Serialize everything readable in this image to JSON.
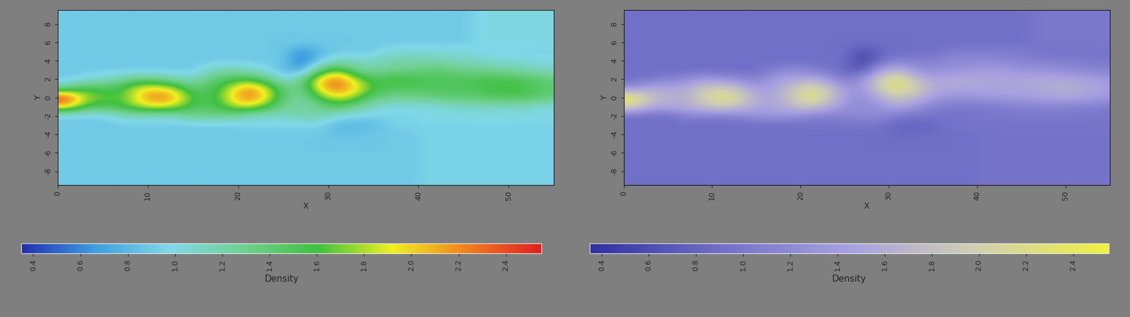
{
  "chart_data": [
    {
      "type": "heatmap",
      "x_label": "X",
      "y_label": "Y",
      "xlim": [
        0,
        55
      ],
      "ylim": [
        -9.5,
        9.5
      ],
      "xticks": [
        0,
        10,
        20,
        30,
        40,
        50
      ],
      "yticks": [
        -8,
        -6,
        -4,
        -2,
        0,
        2,
        4,
        6,
        8
      ],
      "x": [
        1,
        3,
        5,
        7,
        9,
        11,
        13,
        15,
        17,
        19,
        21,
        23,
        25,
        27,
        29,
        31,
        33,
        35,
        37,
        39,
        41,
        43,
        45,
        47,
        49,
        51,
        53,
        55
      ],
      "y": [
        -9,
        -8,
        -7,
        -6,
        -5,
        -4,
        -3,
        -2,
        -1,
        0,
        1,
        2,
        3,
        4,
        5,
        6,
        7,
        8,
        9
      ],
      "cells": [
        [
          0.9,
          0.9,
          0.9,
          0.9,
          0.9,
          0.9,
          0.9,
          0.9,
          0.9,
          0.9,
          0.9,
          0.9,
          0.9,
          0.9,
          0.9,
          0.9,
          0.9,
          0.9,
          0.9,
          0.9,
          0.95,
          0.95,
          0.95,
          0.95,
          0.95,
          0.95,
          0.95,
          0.95
        ],
        [
          0.9,
          0.9,
          0.9,
          0.9,
          0.9,
          0.9,
          0.9,
          0.9,
          0.9,
          0.9,
          0.9,
          0.9,
          0.9,
          0.9,
          0.9,
          0.9,
          0.9,
          0.9,
          0.9,
          0.9,
          0.95,
          0.95,
          0.95,
          0.95,
          0.95,
          0.95,
          0.95,
          0.95
        ],
        [
          0.9,
          0.9,
          0.9,
          0.9,
          0.9,
          0.9,
          0.9,
          0.9,
          0.9,
          0.9,
          0.9,
          0.9,
          0.9,
          0.9,
          0.9,
          0.9,
          0.9,
          0.9,
          0.9,
          0.9,
          0.95,
          0.95,
          0.95,
          0.95,
          0.95,
          0.95,
          0.95,
          0.95
        ],
        [
          0.9,
          0.9,
          0.9,
          0.9,
          0.9,
          0.9,
          0.9,
          0.9,
          0.9,
          0.9,
          0.9,
          0.9,
          0.9,
          0.9,
          0.9,
          0.9,
          0.9,
          0.9,
          0.9,
          0.9,
          0.95,
          0.95,
          0.95,
          0.95,
          0.95,
          0.95,
          0.95,
          0.95
        ],
        [
          0.9,
          0.9,
          0.9,
          0.9,
          0.9,
          0.9,
          0.9,
          0.9,
          0.9,
          0.9,
          0.9,
          0.9,
          0.9,
          0.9,
          0.9,
          0.9,
          0.9,
          0.9,
          0.9,
          0.9,
          0.95,
          0.95,
          0.95,
          0.95,
          0.95,
          0.95,
          0.95,
          0.95
        ],
        [
          0.9,
          0.9,
          0.9,
          0.9,
          0.9,
          0.9,
          0.9,
          0.9,
          0.9,
          0.9,
          0.9,
          0.9,
          0.9,
          0.9,
          0.9,
          0.85,
          0.85,
          0.9,
          0.9,
          0.9,
          0.95,
          0.95,
          0.95,
          0.95,
          0.95,
          0.95,
          0.95,
          0.95
        ],
        [
          0.9,
          0.9,
          0.9,
          0.9,
          0.9,
          0.9,
          0.9,
          0.9,
          0.9,
          0.9,
          0.95,
          0.95,
          0.95,
          0.95,
          0.95,
          0.8,
          0.8,
          0.8,
          0.95,
          0.95,
          0.95,
          0.95,
          0.95,
          0.95,
          0.95,
          0.95,
          0.95,
          0.95
        ],
        [
          0.9,
          0.9,
          0.9,
          1.1,
          1.1,
          1.1,
          1.1,
          1.3,
          1.3,
          1.3,
          1.1,
          1.1,
          1.1,
          1.2,
          1.2,
          1.0,
          0.95,
          0.95,
          0.95,
          0.95,
          1.0,
          1.0,
          1.0,
          1.0,
          1.0,
          1.0,
          1.0,
          1.0
        ],
        [
          2.0,
          1.6,
          1.5,
          1.6,
          1.8,
          1.9,
          1.8,
          1.5,
          1.5,
          1.7,
          1.9,
          1.6,
          1.3,
          1.2,
          1.3,
          1.5,
          1.3,
          1.1,
          1.0,
          1.0,
          1.0,
          1.05,
          1.1,
          1.1,
          1.1,
          1.1,
          1.05,
          1.0
        ],
        [
          2.5,
          1.8,
          1.7,
          1.6,
          2.0,
          2.3,
          2.1,
          1.6,
          1.5,
          1.9,
          2.3,
          2.0,
          1.4,
          1.2,
          1.6,
          1.9,
          1.7,
          1.4,
          1.3,
          1.3,
          1.35,
          1.4,
          1.4,
          1.45,
          1.5,
          1.5,
          1.45,
          1.35
        ],
        [
          1.3,
          1.6,
          1.5,
          1.6,
          1.9,
          2.0,
          1.8,
          1.4,
          1.5,
          1.8,
          2.2,
          1.9,
          1.4,
          1.3,
          2.0,
          2.3,
          2.0,
          1.6,
          1.5,
          1.5,
          1.5,
          1.5,
          1.5,
          1.55,
          1.6,
          1.6,
          1.5,
          1.4
        ],
        [
          0.9,
          1.0,
          1.1,
          1.2,
          1.4,
          1.3,
          1.2,
          1.1,
          1.4,
          1.5,
          1.6,
          1.4,
          1.0,
          1.3,
          2.0,
          2.3,
          1.8,
          1.5,
          1.6,
          1.6,
          1.5,
          1.5,
          1.5,
          1.55,
          1.55,
          1.5,
          1.45,
          1.35
        ],
        [
          0.9,
          0.9,
          0.9,
          0.9,
          0.9,
          0.9,
          0.9,
          0.9,
          1.1,
          1.2,
          1.1,
          1.0,
          0.8,
          0.7,
          1.4,
          1.7,
          1.3,
          1.2,
          1.3,
          1.3,
          1.4,
          1.4,
          1.3,
          1.3,
          1.25,
          1.2,
          1.15,
          1.1
        ],
        [
          0.9,
          0.9,
          0.9,
          0.9,
          0.9,
          0.9,
          0.9,
          0.9,
          0.9,
          0.9,
          0.9,
          0.9,
          0.9,
          0.5,
          0.9,
          1.1,
          1.1,
          1.1,
          1.2,
          1.2,
          1.2,
          1.15,
          1.1,
          1.1,
          1.05,
          1.05,
          1.0,
          1.0
        ],
        [
          0.9,
          0.9,
          0.9,
          0.9,
          0.9,
          0.9,
          0.9,
          0.9,
          0.9,
          0.9,
          0.9,
          0.9,
          0.9,
          0.6,
          0.8,
          0.9,
          0.9,
          0.9,
          1.05,
          1.05,
          1.05,
          1.05,
          1.05,
          0.95,
          0.95,
          0.95,
          0.95,
          0.95
        ],
        [
          0.9,
          0.9,
          0.9,
          0.9,
          0.9,
          0.9,
          0.9,
          0.9,
          0.9,
          0.9,
          0.9,
          0.9,
          0.9,
          0.9,
          0.9,
          0.9,
          0.9,
          0.9,
          0.9,
          0.9,
          0.9,
          0.9,
          0.9,
          1.0,
          1.0,
          1.0,
          1.0,
          1.0
        ],
        [
          0.9,
          0.9,
          0.9,
          0.9,
          0.9,
          0.9,
          0.9,
          0.9,
          0.9,
          0.9,
          0.9,
          0.9,
          0.9,
          0.9,
          0.9,
          0.9,
          0.9,
          0.9,
          0.9,
          0.9,
          0.9,
          0.9,
          0.9,
          1.0,
          1.0,
          1.0,
          1.0,
          1.0
        ],
        [
          0.9,
          0.9,
          0.9,
          0.9,
          0.9,
          0.9,
          0.9,
          0.9,
          0.9,
          0.9,
          0.9,
          0.9,
          0.9,
          0.9,
          0.9,
          0.9,
          0.9,
          0.9,
          0.9,
          0.9,
          0.9,
          0.9,
          0.9,
          1.0,
          1.0,
          1.0,
          1.0,
          1.0
        ],
        [
          0.9,
          0.9,
          0.9,
          0.9,
          0.9,
          0.9,
          0.9,
          0.9,
          0.9,
          0.9,
          0.9,
          0.9,
          0.9,
          0.9,
          0.9,
          0.9,
          0.9,
          0.9,
          0.9,
          0.9,
          0.9,
          0.9,
          0.9,
          1.0,
          1.0,
          1.0,
          1.0,
          1.0
        ]
      ],
      "colorbar_label": "Density",
      "colorbar_range": [
        0.35,
        2.55
      ],
      "colorbar_ticks": [
        0.4,
        0.6,
        0.8,
        1.0,
        1.2,
        1.4,
        1.6,
        1.8,
        2.0,
        2.2,
        2.4
      ],
      "colors": [
        "#2030b0",
        "#40a0e0",
        "#80d8e8",
        "#70d090",
        "#40c040",
        "#f0f020",
        "#f08020",
        "#e02020"
      ]
    },
    {
      "type": "heatmap",
      "x_label": "X",
      "y_label": "Y",
      "xlim": [
        0,
        55
      ],
      "ylim": [
        -9.5,
        9.5
      ],
      "xticks": [
        0,
        10,
        20,
        30,
        40,
        50
      ],
      "yticks": [
        -8,
        -6,
        -4,
        -2,
        0,
        2,
        4,
        6,
        8
      ],
      "x": [
        1,
        3,
        5,
        7,
        9,
        11,
        13,
        15,
        17,
        19,
        21,
        23,
        25,
        27,
        29,
        31,
        33,
        35,
        37,
        39,
        41,
        43,
        45,
        47,
        49,
        51,
        53,
        55
      ],
      "y": [
        -9,
        -8,
        -7,
        -6,
        -5,
        -4,
        -3,
        -2,
        -1,
        0,
        1,
        2,
        3,
        4,
        5,
        6,
        7,
        8,
        9
      ],
      "cells": [
        [
          0.9,
          0.9,
          0.9,
          0.9,
          0.9,
          0.9,
          0.9,
          0.9,
          0.9,
          0.9,
          0.9,
          0.9,
          0.9,
          0.9,
          0.9,
          0.9,
          0.9,
          0.9,
          0.9,
          0.9,
          0.95,
          0.95,
          0.95,
          0.95,
          0.95,
          0.95,
          0.95,
          0.95
        ],
        [
          0.9,
          0.9,
          0.9,
          0.9,
          0.9,
          0.9,
          0.9,
          0.9,
          0.9,
          0.9,
          0.9,
          0.9,
          0.9,
          0.9,
          0.9,
          0.9,
          0.9,
          0.9,
          0.9,
          0.9,
          0.95,
          0.95,
          0.95,
          0.95,
          0.95,
          0.95,
          0.95,
          0.95
        ],
        [
          0.9,
          0.9,
          0.9,
          0.9,
          0.9,
          0.9,
          0.9,
          0.9,
          0.9,
          0.9,
          0.9,
          0.9,
          0.9,
          0.9,
          0.9,
          0.9,
          0.9,
          0.9,
          0.9,
          0.9,
          0.95,
          0.95,
          0.95,
          0.95,
          0.95,
          0.95,
          0.95,
          0.95
        ],
        [
          0.9,
          0.9,
          0.9,
          0.9,
          0.9,
          0.9,
          0.9,
          0.9,
          0.9,
          0.9,
          0.9,
          0.9,
          0.9,
          0.9,
          0.9,
          0.9,
          0.9,
          0.9,
          0.9,
          0.9,
          0.95,
          0.95,
          0.95,
          0.95,
          0.95,
          0.95,
          0.95,
          0.95
        ],
        [
          0.9,
          0.9,
          0.9,
          0.9,
          0.9,
          0.9,
          0.9,
          0.9,
          0.9,
          0.9,
          0.9,
          0.9,
          0.9,
          0.9,
          0.9,
          0.9,
          0.9,
          0.9,
          0.9,
          0.9,
          0.95,
          0.95,
          0.95,
          0.95,
          0.95,
          0.95,
          0.95,
          0.95
        ],
        [
          0.9,
          0.9,
          0.9,
          0.9,
          0.9,
          0.9,
          0.9,
          0.9,
          0.9,
          0.9,
          0.9,
          0.9,
          0.9,
          0.9,
          0.9,
          0.85,
          0.85,
          0.9,
          0.9,
          0.9,
          0.95,
          0.95,
          0.95,
          0.95,
          0.95,
          0.95,
          0.95,
          0.95
        ],
        [
          0.9,
          0.9,
          0.9,
          0.9,
          0.9,
          0.9,
          0.9,
          0.9,
          0.9,
          0.9,
          0.95,
          0.95,
          0.95,
          0.95,
          0.95,
          0.8,
          0.8,
          0.8,
          0.95,
          0.95,
          0.95,
          0.95,
          0.95,
          0.95,
          0.95,
          0.95,
          0.95,
          0.95
        ],
        [
          0.9,
          0.9,
          0.9,
          1.1,
          1.1,
          1.1,
          1.1,
          1.3,
          1.3,
          1.3,
          1.1,
          1.1,
          1.1,
          1.2,
          1.2,
          1.0,
          0.95,
          0.95,
          0.95,
          0.95,
          1.0,
          1.0,
          1.0,
          1.0,
          1.0,
          1.0,
          1.0,
          1.0
        ],
        [
          2.0,
          1.6,
          1.5,
          1.6,
          1.8,
          1.9,
          1.8,
          1.5,
          1.5,
          1.7,
          1.9,
          1.6,
          1.3,
          1.2,
          1.3,
          1.5,
          1.3,
          1.1,
          1.0,
          1.0,
          1.0,
          1.05,
          1.1,
          1.1,
          1.1,
          1.1,
          1.05,
          1.0
        ],
        [
          2.5,
          1.8,
          1.7,
          1.6,
          2.0,
          2.3,
          2.1,
          1.6,
          1.5,
          1.9,
          2.3,
          2.0,
          1.4,
          1.2,
          1.6,
          1.9,
          1.7,
          1.4,
          1.3,
          1.3,
          1.35,
          1.4,
          1.4,
          1.45,
          1.5,
          1.5,
          1.45,
          1.35
        ],
        [
          1.3,
          1.6,
          1.5,
          1.6,
          1.9,
          2.0,
          1.8,
          1.4,
          1.5,
          1.8,
          2.2,
          1.9,
          1.4,
          1.3,
          2.0,
          2.3,
          2.0,
          1.6,
          1.5,
          1.5,
          1.5,
          1.5,
          1.5,
          1.55,
          1.6,
          1.6,
          1.5,
          1.4
        ],
        [
          0.9,
          1.0,
          1.1,
          1.2,
          1.4,
          1.3,
          1.2,
          1.1,
          1.4,
          1.5,
          1.6,
          1.4,
          1.0,
          1.3,
          2.0,
          2.3,
          1.8,
          1.5,
          1.6,
          1.6,
          1.5,
          1.5,
          1.5,
          1.55,
          1.55,
          1.5,
          1.45,
          1.35
        ],
        [
          0.9,
          0.9,
          0.9,
          0.9,
          0.9,
          0.9,
          0.9,
          0.9,
          1.1,
          1.2,
          1.1,
          1.0,
          0.8,
          0.7,
          1.4,
          1.7,
          1.3,
          1.2,
          1.3,
          1.3,
          1.4,
          1.4,
          1.3,
          1.3,
          1.25,
          1.2,
          1.15,
          1.1
        ],
        [
          0.9,
          0.9,
          0.9,
          0.9,
          0.9,
          0.9,
          0.9,
          0.9,
          0.9,
          0.9,
          0.9,
          0.9,
          0.9,
          0.5,
          0.9,
          1.1,
          1.1,
          1.1,
          1.2,
          1.2,
          1.2,
          1.15,
          1.1,
          1.1,
          1.05,
          1.05,
          1.0,
          1.0
        ],
        [
          0.9,
          0.9,
          0.9,
          0.9,
          0.9,
          0.9,
          0.9,
          0.9,
          0.9,
          0.9,
          0.9,
          0.9,
          0.9,
          0.6,
          0.8,
          0.9,
          0.9,
          0.9,
          1.05,
          1.05,
          1.05,
          1.05,
          1.05,
          0.95,
          0.95,
          0.95,
          0.95,
          0.95
        ],
        [
          0.9,
          0.9,
          0.9,
          0.9,
          0.9,
          0.9,
          0.9,
          0.9,
          0.9,
          0.9,
          0.9,
          0.9,
          0.9,
          0.9,
          0.9,
          0.9,
          0.9,
          0.9,
          0.9,
          0.9,
          0.9,
          0.9,
          0.9,
          1.0,
          1.0,
          1.0,
          1.0,
          1.0
        ],
        [
          0.9,
          0.9,
          0.9,
          0.9,
          0.9,
          0.9,
          0.9,
          0.9,
          0.9,
          0.9,
          0.9,
          0.9,
          0.9,
          0.9,
          0.9,
          0.9,
          0.9,
          0.9,
          0.9,
          0.9,
          0.9,
          0.9,
          0.9,
          1.0,
          1.0,
          1.0,
          1.0,
          1.0
        ],
        [
          0.9,
          0.9,
          0.9,
          0.9,
          0.9,
          0.9,
          0.9,
          0.9,
          0.9,
          0.9,
          0.9,
          0.9,
          0.9,
          0.9,
          0.9,
          0.9,
          0.9,
          0.9,
          0.9,
          0.9,
          0.9,
          0.9,
          0.9,
          1.0,
          1.0,
          1.0,
          1.0,
          1.0
        ],
        [
          0.9,
          0.9,
          0.9,
          0.9,
          0.9,
          0.9,
          0.9,
          0.9,
          0.9,
          0.9,
          0.9,
          0.9,
          0.9,
          0.9,
          0.9,
          0.9,
          0.9,
          0.9,
          0.9,
          0.9,
          0.9,
          0.9,
          0.9,
          1.0,
          1.0,
          1.0,
          1.0,
          1.0
        ]
      ],
      "colorbar_label": "Density",
      "colorbar_range": [
        0.35,
        2.55
      ],
      "colorbar_ticks": [
        0.4,
        0.6,
        0.8,
        1.0,
        1.2,
        1.4,
        1.6,
        1.8,
        2.0,
        2.2,
        2.4
      ],
      "colors": [
        "#3030a0",
        "#7070c8",
        "#a8a0e0",
        "#d0d0b0",
        "#f0f040"
      ]
    }
  ]
}
